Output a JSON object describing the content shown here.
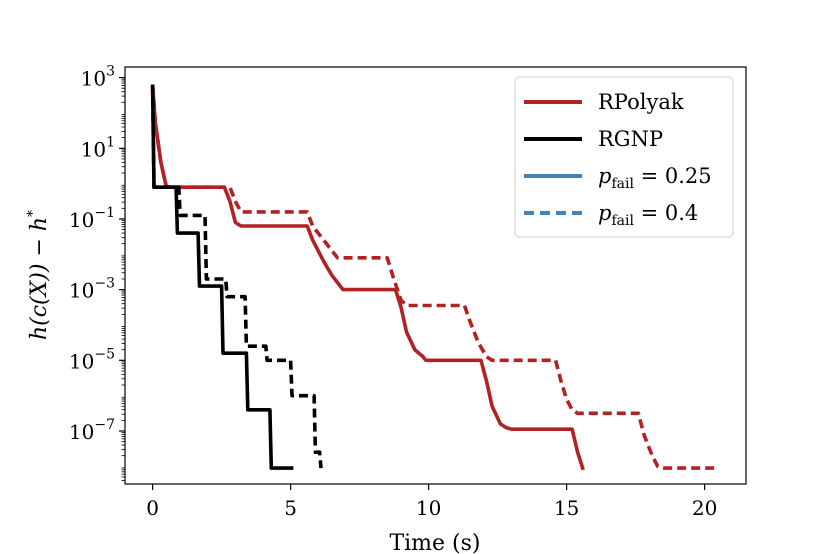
{
  "chart_data": {
    "type": "line",
    "title": "",
    "xlabel": "Time (s)",
    "ylabel_parts": {
      "base": "h(c(X)) − h",
      "sup": "*"
    },
    "xlim": [
      -1,
      21.5
    ],
    "ylim_log10": [
      -8.5,
      3.3
    ],
    "y_scale": "log",
    "x_ticks": [
      0,
      5,
      10,
      15,
      20
    ],
    "x_tick_labels": [
      "0",
      "5",
      "10",
      "15",
      "20"
    ],
    "y_ticks_log10": [
      3,
      1,
      -1,
      -3,
      -5,
      -7
    ],
    "y_tick_labels": [
      {
        "base": "10",
        "exp": "3"
      },
      {
        "base": "10",
        "exp": "1"
      },
      {
        "base": "10",
        "exp": "−1"
      },
      {
        "base": "10",
        "exp": "−3"
      },
      {
        "base": "10",
        "exp": "−5"
      },
      {
        "base": "10",
        "exp": "−7"
      }
    ],
    "legend": {
      "placement": "top-right",
      "entries": [
        {
          "label": "RPolyak",
          "color": "#b22222",
          "style": "solid"
        },
        {
          "label": "RGNP",
          "color": "#000000",
          "style": "solid"
        },
        {
          "label_parts": {
            "p": "p",
            "sub": "fail",
            "rest": " = 0.25"
          },
          "color": "#4682b4",
          "style": "solid"
        },
        {
          "label_parts": {
            "p": "p",
            "sub": "fail",
            "rest": " = 0.4"
          },
          "color": "#4682b4",
          "style": "dashed"
        }
      ]
    },
    "series": [
      {
        "name": "RPolyak",
        "p_fail": "0.25",
        "color": "#b22222",
        "style": "solid",
        "points": [
          [
            0,
            2.8
          ],
          [
            0.1,
            1.7
          ],
          [
            0.3,
            0.6
          ],
          [
            0.5,
            -0.1
          ],
          [
            0.7,
            -0.1
          ],
          [
            2.6,
            -0.1
          ],
          [
            2.8,
            -0.5
          ],
          [
            3.0,
            -1.1
          ],
          [
            3.2,
            -1.2
          ],
          [
            5.6,
            -1.2
          ],
          [
            5.8,
            -1.6
          ],
          [
            6.2,
            -2.2
          ],
          [
            6.5,
            -2.6
          ],
          [
            6.8,
            -2.9
          ],
          [
            6.9,
            -3.0
          ],
          [
            8.8,
            -3.0
          ],
          [
            9.0,
            -3.5
          ],
          [
            9.2,
            -4.2
          ],
          [
            9.5,
            -4.7
          ],
          [
            9.8,
            -4.9
          ],
          [
            9.9,
            -5.0
          ],
          [
            11.9,
            -5.0
          ],
          [
            12.1,
            -5.6
          ],
          [
            12.3,
            -6.3
          ],
          [
            12.6,
            -6.8
          ],
          [
            12.8,
            -6.9
          ],
          [
            13.0,
            -6.95
          ],
          [
            15.2,
            -6.95
          ],
          [
            15.4,
            -7.6
          ],
          [
            15.6,
            -8.1
          ]
        ]
      },
      {
        "name": "RPolyak",
        "p_fail": "0.4",
        "color": "#b22222",
        "style": "dashed",
        "points": [
          [
            0,
            2.8
          ],
          [
            0.1,
            1.7
          ],
          [
            0.3,
            0.6
          ],
          [
            0.5,
            -0.1
          ],
          [
            0.7,
            -0.1
          ],
          [
            2.8,
            -0.1
          ],
          [
            3.0,
            -0.5
          ],
          [
            3.2,
            -0.8
          ],
          [
            5.6,
            -0.8
          ],
          [
            5.8,
            -1.2
          ],
          [
            6.2,
            -1.6
          ],
          [
            6.5,
            -1.9
          ],
          [
            6.7,
            -2.1
          ],
          [
            8.5,
            -2.1
          ],
          [
            8.7,
            -2.6
          ],
          [
            9.0,
            -3.3
          ],
          [
            9.2,
            -3.45
          ],
          [
            11.3,
            -3.45
          ],
          [
            11.5,
            -3.9
          ],
          [
            11.8,
            -4.5
          ],
          [
            12.1,
            -4.9
          ],
          [
            12.3,
            -5.0
          ],
          [
            14.6,
            -5.0
          ],
          [
            14.8,
            -5.6
          ],
          [
            15.0,
            -6.1
          ],
          [
            15.2,
            -6.4
          ],
          [
            15.4,
            -6.5
          ],
          [
            17.6,
            -6.5
          ],
          [
            17.8,
            -7.1
          ],
          [
            18.1,
            -7.7
          ],
          [
            18.3,
            -8.0
          ],
          [
            18.5,
            -8.05
          ],
          [
            20.5,
            -8.05
          ]
        ]
      },
      {
        "name": "RGNP",
        "p_fail": "0.25",
        "color": "#000000",
        "style": "solid",
        "points": [
          [
            0,
            2.8
          ],
          [
            0.05,
            -0.1
          ],
          [
            0.85,
            -0.1
          ],
          [
            0.9,
            -1.4
          ],
          [
            1.65,
            -1.4
          ],
          [
            1.7,
            -2.9
          ],
          [
            2.5,
            -2.9
          ],
          [
            2.55,
            -4.8
          ],
          [
            3.4,
            -4.8
          ],
          [
            3.45,
            -6.4
          ],
          [
            4.25,
            -6.4
          ],
          [
            4.3,
            -8.05
          ],
          [
            5.1,
            -8.05
          ]
        ]
      },
      {
        "name": "RGNP",
        "p_fail": "0.4",
        "color": "#000000",
        "style": "dashed",
        "points": [
          [
            0,
            2.8
          ],
          [
            0.05,
            -0.1
          ],
          [
            0.95,
            -0.1
          ],
          [
            1.0,
            -0.9
          ],
          [
            1.9,
            -0.9
          ],
          [
            1.95,
            -2.7
          ],
          [
            2.65,
            -2.7
          ],
          [
            2.7,
            -3.2
          ],
          [
            3.35,
            -3.2
          ],
          [
            3.4,
            -4.6
          ],
          [
            4.1,
            -4.6
          ],
          [
            4.15,
            -5.0
          ],
          [
            5.0,
            -5.0
          ],
          [
            5.05,
            -6.0
          ],
          [
            5.85,
            -6.0
          ],
          [
            5.9,
            -7.6
          ],
          [
            6.05,
            -7.6
          ],
          [
            6.1,
            -8.05
          ]
        ]
      }
    ]
  }
}
